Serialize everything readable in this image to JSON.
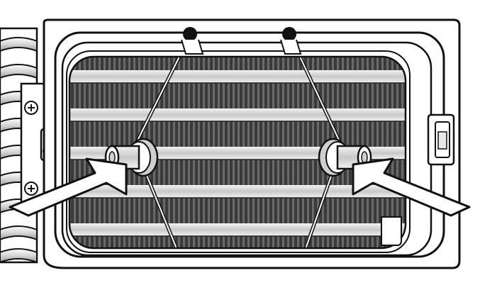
{
  "illustration": {
    "subject": "",
    "palette": {
      "ink": "#111111",
      "paper": "#ffffff",
      "light_gray": "#cfcfcf",
      "mid_gray": "#8a8a8a",
      "dark_fin": "#3a3a3a"
    },
    "icons": {
      "screw_top": "phillips-screw-icon",
      "screw_bottom": "phillips-screw-icon",
      "arrow_left": "block-arrow-right-up-icon",
      "arrow_right": "block-arrow-left-up-icon"
    }
  }
}
